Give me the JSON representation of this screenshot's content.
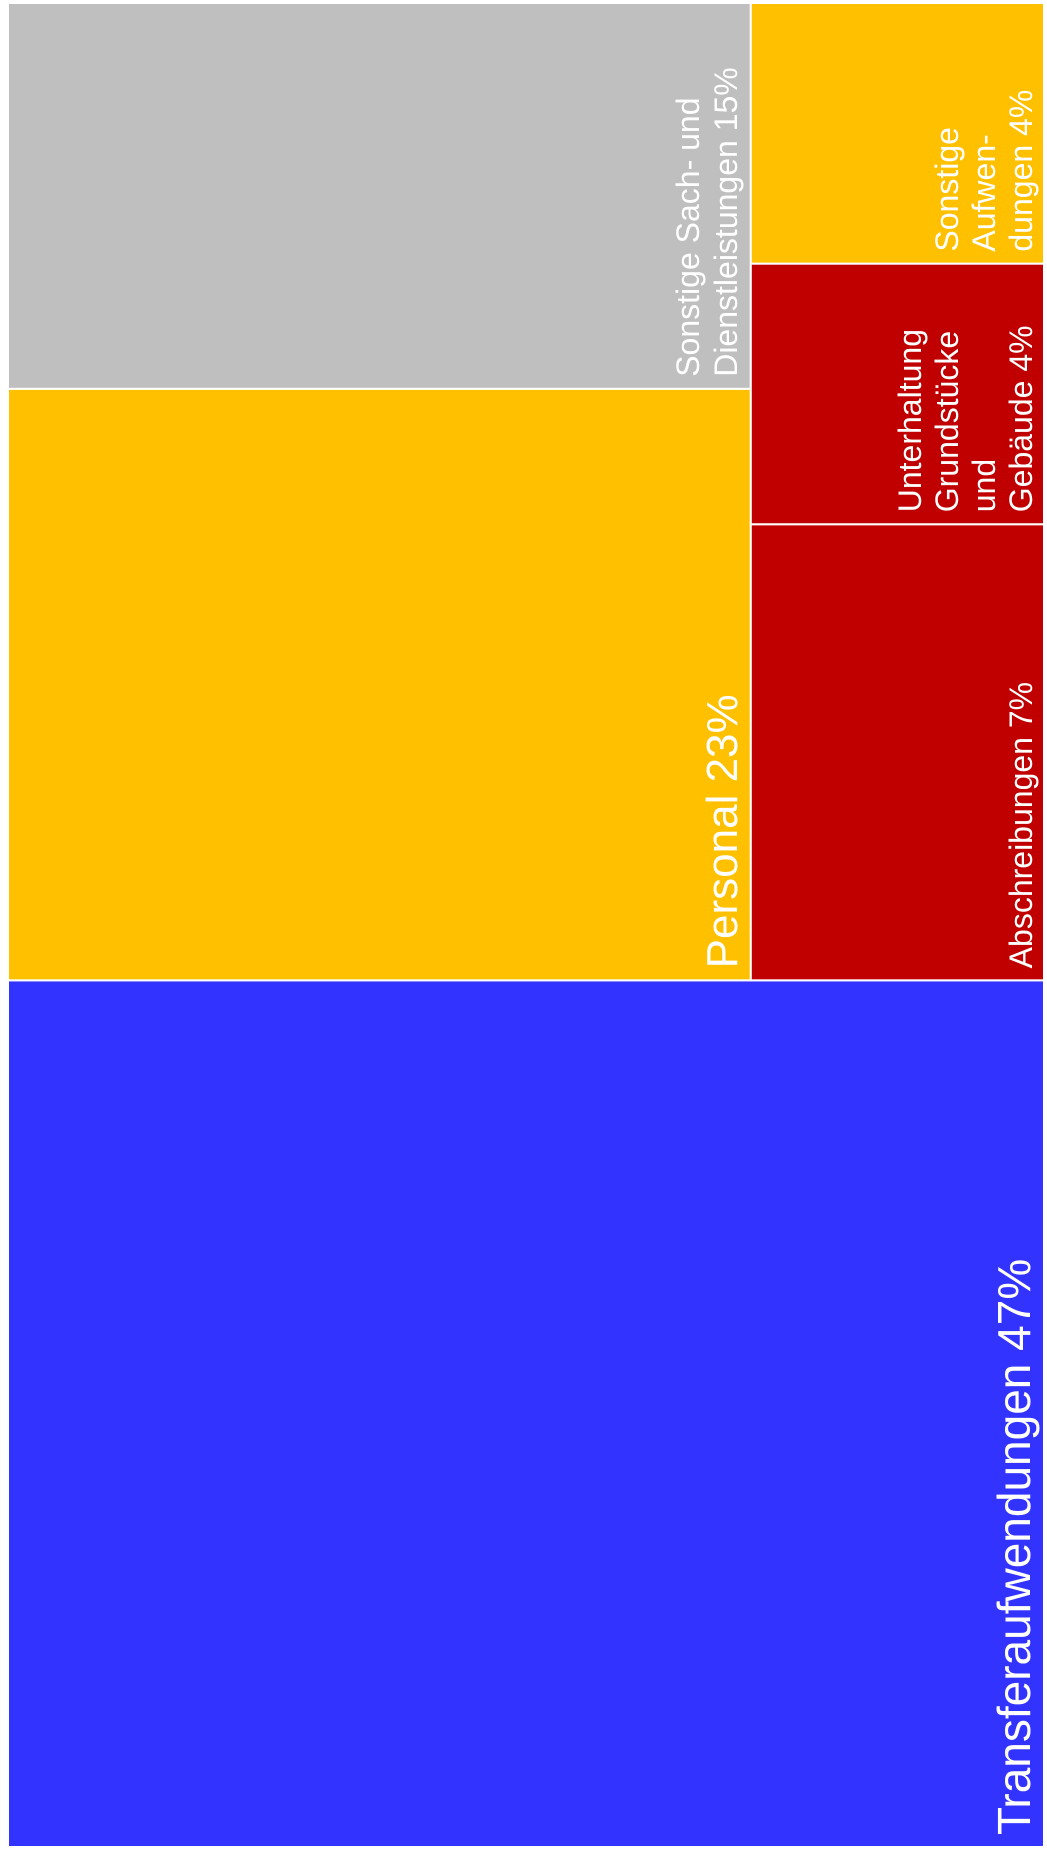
{
  "chart_data": {
    "type": "treemap",
    "title": "",
    "unit": "%",
    "tiles": [
      {
        "id": "transfer",
        "label_lines": [
          "Transferaufwendungen 47%"
        ],
        "category": "Transferaufwendungen",
        "value": 47,
        "color": "#3333ff"
      },
      {
        "id": "personal",
        "label_lines": [
          "Personal 23%"
        ],
        "category": "Personal",
        "value": 23,
        "color": "#ffc000"
      },
      {
        "id": "sach",
        "label_lines": [
          "Sonstige Sach- und",
          "Dienstleistungen 15%"
        ],
        "category": "Sonstige Sach- und Dienstleistungen",
        "value": 15,
        "color": "#bfbfbf"
      },
      {
        "id": "abschreibungen",
        "label_lines": [
          "Abschreibungen 7%"
        ],
        "category": "Abschreibungen",
        "value": 7,
        "color": "#c00000"
      },
      {
        "id": "unterhaltung",
        "label_lines": [
          "Unterhaltung",
          "Grundstücke",
          "und",
          "Gebäude 4%"
        ],
        "category": "Unterhaltung Grundstücke und Gebäude",
        "value": 4,
        "color": "#c00000"
      },
      {
        "id": "sonstige-aufwendungen",
        "label_lines": [
          "Sonstige",
          "Aufwen-",
          "dungen 4%"
        ],
        "category": "Sonstige Aufwendungen",
        "value": 4,
        "color": "#ffc000"
      }
    ]
  }
}
